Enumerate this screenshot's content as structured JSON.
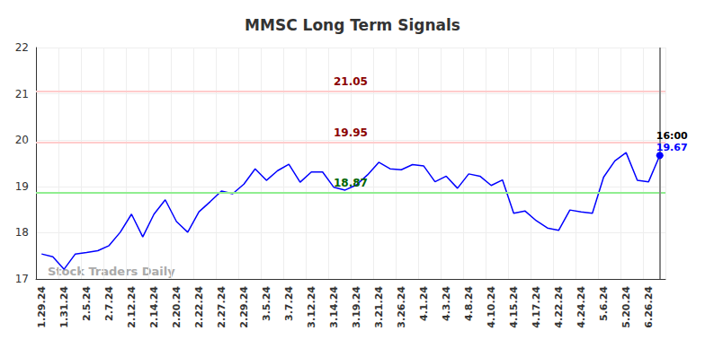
{
  "chart_data": {
    "type": "line",
    "title": "MMSC Long Term Signals",
    "categories": [
      "1.29.24",
      null,
      "1.31.24",
      null,
      "2.5.24",
      null,
      "2.7.24",
      null,
      "2.12.24",
      null,
      "2.14.24",
      null,
      "2.20.24",
      null,
      "2.22.24",
      null,
      "2.27.24",
      null,
      "2.29.24",
      null,
      "3.5.24",
      null,
      "3.7.24",
      null,
      "3.12.24",
      null,
      "3.14.24",
      null,
      "3.19.24",
      null,
      "3.21.24",
      null,
      "3.26.24",
      null,
      "4.1.24",
      null,
      "4.3.24",
      null,
      "4.8.24",
      null,
      "4.10.24",
      null,
      "4.15.24",
      null,
      "4.17.24",
      null,
      "4.22.24",
      null,
      "4.24.24",
      null,
      "5.6.24",
      null,
      "5.20.24",
      null,
      "6.26.24",
      null
    ],
    "values": [
      17.54,
      17.48,
      17.21,
      17.54,
      17.57,
      17.61,
      17.72,
      18.01,
      18.4,
      17.91,
      18.4,
      18.71,
      18.24,
      18.01,
      18.45,
      18.67,
      18.9,
      18.84,
      19.05,
      19.38,
      19.13,
      19.34,
      19.48,
      19.09,
      19.31,
      19.31,
      18.98,
      18.92,
      19.03,
      19.25,
      19.52,
      19.38,
      19.36,
      19.47,
      19.44,
      19.1,
      19.22,
      18.96,
      19.27,
      19.22,
      19.02,
      19.14,
      18.42,
      18.47,
      18.26,
      18.1,
      18.05,
      18.49,
      18.45,
      18.42,
      19.2,
      19.55,
      19.73,
      19.13,
      19.1,
      19.67
    ],
    "color": "#0000ff",
    "ylim": [
      17,
      22
    ],
    "yticks": [
      17,
      18,
      19,
      20,
      21,
      22
    ],
    "grid": true,
    "reference_lines": [
      {
        "value": 21.05,
        "color": "#ffcccc",
        "label_color": "#8b0000"
      },
      {
        "value": 19.95,
        "color": "#ffcccc",
        "label_color": "#8b0000"
      },
      {
        "value": 18.87,
        "color": "#90ee90",
        "label_color": "#006400"
      }
    ],
    "last_time": "16:00",
    "watermark": "Stock Traders Daily"
  }
}
